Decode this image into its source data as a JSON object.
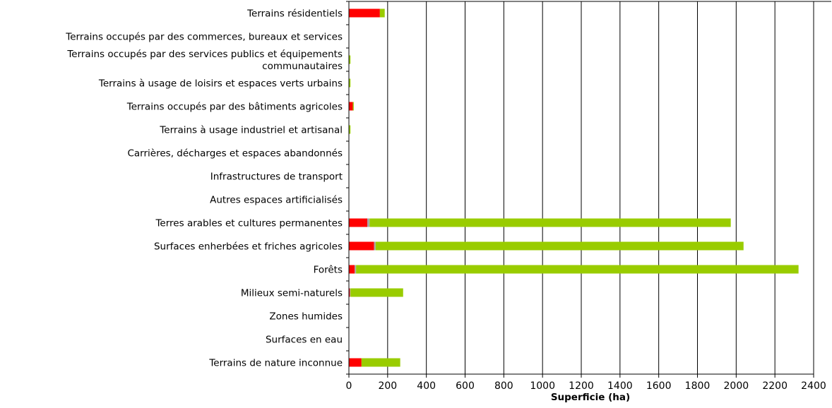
{
  "chart_data": {
    "type": "bar",
    "orientation": "horizontal",
    "stacked": true,
    "categories": [
      [
        "Terrains résidentiels"
      ],
      [
        "Terrains occupés par des commerces, bureaux et services"
      ],
      [
        "Terrains occupés par des services publics et équipements",
        "communautaires"
      ],
      [
        "Terrains à usage de loisirs et espaces verts urbains"
      ],
      [
        "Terrains occupés par des bâtiments agricoles"
      ],
      [
        "Terrains à usage industriel et artisanal"
      ],
      [
        "Carrières, décharges et espaces abandonnés"
      ],
      [
        "Infrastructures de transport"
      ],
      [
        "Autres espaces artificialisés"
      ],
      [
        "Terres arables et cultures permanentes"
      ],
      [
        "Surfaces enherbées et friches agricoles"
      ],
      [
        "Forêts"
      ],
      [
        "Milieux semi-naturels"
      ],
      [
        "Zones humides"
      ],
      [
        "Surfaces en eau"
      ],
      [
        "Terrains de nature inconnue"
      ]
    ],
    "series": [
      {
        "color": "#ff0000",
        "values": [
          160,
          0,
          0,
          0,
          20,
          0,
          0,
          0,
          0,
          95,
          130,
          30,
          5,
          0,
          0,
          65
        ]
      },
      {
        "color": "#a6a6a6",
        "values": [
          0,
          0,
          0,
          0,
          0,
          0,
          0,
          0,
          0,
          12,
          8,
          7,
          3,
          0,
          0,
          0
        ]
      },
      {
        "color": "#99cc00",
        "values": [
          25,
          0,
          8,
          8,
          5,
          8,
          0,
          0,
          0,
          1865,
          1900,
          2285,
          272,
          0,
          0,
          200
        ]
      }
    ],
    "xlim": [
      0,
      2400
    ],
    "xticks": [
      0,
      200,
      400,
      600,
      800,
      1000,
      1200,
      1400,
      1600,
      1800,
      2000,
      2200,
      2400
    ],
    "xlabel": "Superficie (ha)",
    "grid": "vertical",
    "legend": "none"
  }
}
